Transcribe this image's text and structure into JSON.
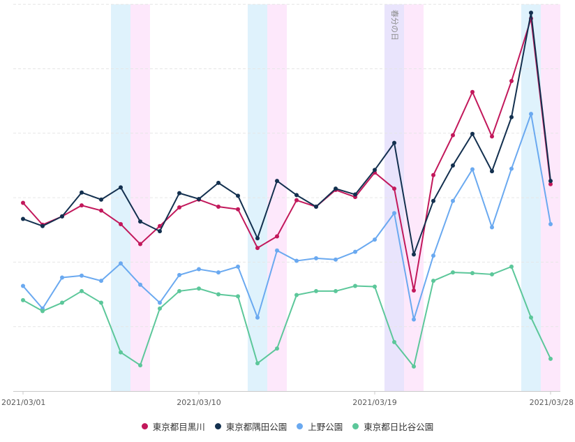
{
  "chart_data": {
    "type": "line",
    "title": "",
    "xlabel": "",
    "ylabel": "",
    "y_axis_labels_visible": false,
    "ylim": [
      0,
      6
    ],
    "grid": {
      "horizontal": true,
      "style": "dashed",
      "lines": [
        1,
        2,
        3,
        4,
        5,
        6
      ]
    },
    "x": [
      "2021/03/01",
      "2021/03/02",
      "2021/03/03",
      "2021/03/04",
      "2021/03/05",
      "2021/03/06",
      "2021/03/07",
      "2021/03/08",
      "2021/03/09",
      "2021/03/10",
      "2021/03/11",
      "2021/03/12",
      "2021/03/13",
      "2021/03/14",
      "2021/03/15",
      "2021/03/16",
      "2021/03/17",
      "2021/03/18",
      "2021/03/19",
      "2021/03/20",
      "2021/03/21",
      "2021/03/22",
      "2021/03/23",
      "2021/03/24",
      "2021/03/25",
      "2021/03/26",
      "2021/03/27",
      "2021/03/28"
    ],
    "x_tick_labels": [
      "2021/03/01",
      "2021/03/10",
      "2021/03/19",
      "2021/03/28"
    ],
    "x_tick_indices": [
      0,
      9,
      18,
      27
    ],
    "series": [
      {
        "name": "東京都目黒川",
        "color": "#c2185b",
        "values": [
          2.92,
          2.58,
          2.71,
          2.88,
          2.8,
          2.59,
          2.28,
          2.56,
          2.85,
          2.97,
          2.86,
          2.82,
          2.22,
          2.4,
          2.96,
          2.86,
          3.12,
          3.01,
          3.39,
          3.14,
          1.56,
          3.35,
          3.97,
          4.64,
          3.95,
          4.81,
          5.78,
          3.21
        ]
      },
      {
        "name": "東京都隅田公園",
        "color": "#13304f",
        "values": [
          2.67,
          2.56,
          2.71,
          3.08,
          2.97,
          3.16,
          2.63,
          2.48,
          3.07,
          2.98,
          3.23,
          3.03,
          2.37,
          3.26,
          3.04,
          2.86,
          3.14,
          3.05,
          3.43,
          3.85,
          2.12,
          2.95,
          3.5,
          3.99,
          3.41,
          4.25,
          5.87,
          3.26
        ]
      },
      {
        "name": "上野公園",
        "color": "#6aa9f0",
        "values": [
          1.63,
          1.28,
          1.76,
          1.79,
          1.71,
          1.98,
          1.65,
          1.37,
          1.8,
          1.89,
          1.84,
          1.93,
          1.14,
          2.18,
          2.02,
          2.06,
          2.04,
          2.16,
          2.35,
          2.76,
          1.11,
          2.1,
          2.95,
          3.44,
          2.54,
          3.45,
          4.3,
          2.59
        ]
      },
      {
        "name": "東京都日比谷公園",
        "color": "#5cc79a",
        "values": [
          1.41,
          1.24,
          1.37,
          1.55,
          1.37,
          0.6,
          0.4,
          1.28,
          1.55,
          1.59,
          1.5,
          1.47,
          0.43,
          0.66,
          1.49,
          1.55,
          1.55,
          1.63,
          1.62,
          0.76,
          0.38,
          1.71,
          1.84,
          1.83,
          1.81,
          1.93,
          1.14,
          0.5
        ]
      }
    ],
    "highlight_bands": [
      {
        "start_index": 5,
        "end_index": 5,
        "kind": "saturday",
        "color": "#dff2fc"
      },
      {
        "start_index": 6,
        "end_index": 6,
        "kind": "sunday",
        "color": "#fde8fb"
      },
      {
        "start_index": 12,
        "end_index": 12,
        "kind": "saturday",
        "color": "#dff2fc"
      },
      {
        "start_index": 13,
        "end_index": 13,
        "kind": "sunday",
        "color": "#fde8fb"
      },
      {
        "start_index": 19,
        "end_index": 19,
        "kind": "holiday",
        "color": "#e9e4fc",
        "label": "春分の日"
      },
      {
        "start_index": 20,
        "end_index": 20,
        "kind": "sunday",
        "color": "#fde8fb"
      },
      {
        "start_index": 26,
        "end_index": 26,
        "kind": "saturday",
        "color": "#dff2fc"
      },
      {
        "start_index": 27,
        "end_index": 27,
        "kind": "sunday",
        "color": "#fde8fb"
      }
    ],
    "legend": {
      "position": "bottom",
      "entries": [
        "東京都目黒川",
        "東京都隅田公園",
        "上野公園",
        "東京都日比谷公園"
      ]
    }
  },
  "legend": {
    "items": [
      {
        "label": "東京都目黒川",
        "color": "#c2185b"
      },
      {
        "label": "東京都隅田公園",
        "color": "#13304f"
      },
      {
        "label": "上野公園",
        "color": "#6aa9f0"
      },
      {
        "label": "東京都日比谷公園",
        "color": "#5cc79a"
      }
    ]
  }
}
